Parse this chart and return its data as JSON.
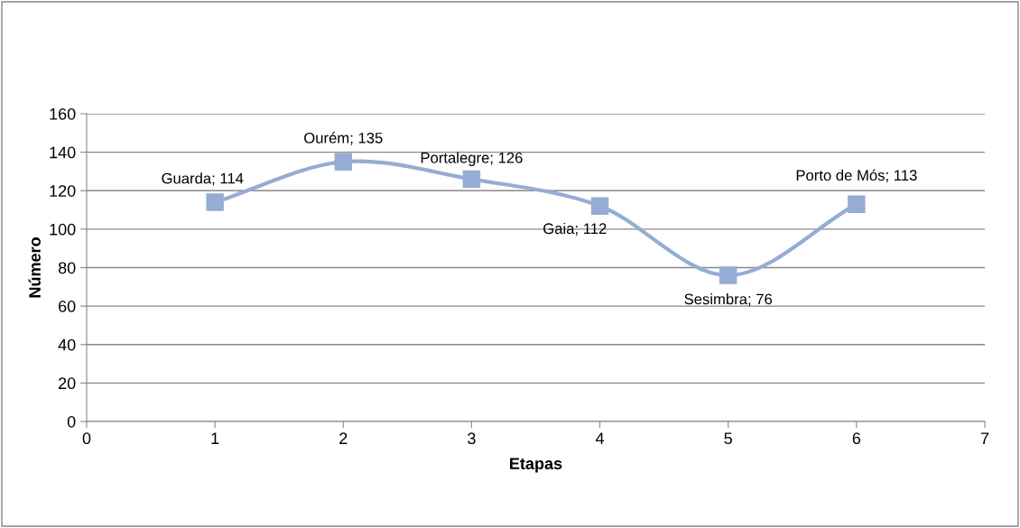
{
  "chart_data": {
    "type": "line",
    "xlabel": "Etapas",
    "ylabel": "Número",
    "x": [
      1,
      2,
      3,
      4,
      5,
      6
    ],
    "series": [
      {
        "color": "#95acd4",
        "values": [
          114,
          135,
          126,
          112,
          76,
          113
        ],
        "value_labels": [
          "Guarda; 114",
          "Ourém; 135",
          "Portalegre; 126",
          "Gaia; 112",
          "Sesimbra; 76",
          "Porto de Mós; 113"
        ]
      }
    ],
    "xlim": [
      0,
      7
    ],
    "xticks": [
      0,
      1,
      2,
      3,
      4,
      5,
      6,
      7
    ],
    "ylim": [
      0,
      160
    ],
    "yticks": [
      0,
      20,
      40,
      60,
      80,
      100,
      120,
      140,
      160
    ],
    "grid": "y",
    "marker": "square",
    "line_style": "solid",
    "legend": false
  }
}
